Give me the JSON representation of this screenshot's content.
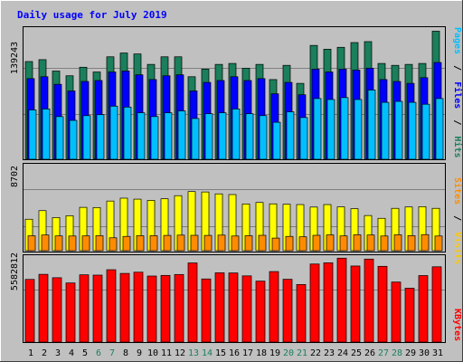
{
  "colors": {
    "background": "#c0c0c0",
    "hits": "#1a7f5a",
    "files": "#0000ff",
    "pages": "#00bfff",
    "visits": "#ffff00",
    "sites": "#ff8c00",
    "kbytes": "#ff0000",
    "title": "#0000ff",
    "weekend": "#1a7f5a"
  },
  "chart_data": [
    {
      "type": "bar",
      "title": "Daily usage for July 2019",
      "categories": [
        "1",
        "2",
        "3",
        "4",
        "5",
        "6",
        "7",
        "8",
        "9",
        "10",
        "11",
        "12",
        "13",
        "14",
        "15",
        "16",
        "17",
        "18",
        "19",
        "20",
        "21",
        "22",
        "23",
        "24",
        "25",
        "26",
        "27",
        "28",
        "29",
        "30",
        "31"
      ],
      "weekend_days": [
        "6",
        "7",
        "13",
        "14",
        "20",
        "21",
        "27",
        "28"
      ],
      "ylabel_max": "139243",
      "legend": [
        "Pages",
        "/",
        "Files",
        "/",
        "Hits"
      ],
      "ylim": [
        0,
        139243
      ],
      "series": [
        {
          "name": "Hits",
          "values": [
            103000,
            105000,
            93000,
            88000,
            97000,
            92000,
            108000,
            112000,
            111000,
            100000,
            108000,
            108000,
            87000,
            95000,
            100000,
            101000,
            96000,
            100000,
            84000,
            99000,
            80000,
            120000,
            116000,
            118000,
            123000,
            124000,
            101000,
            99000,
            100000,
            101000,
            135000
          ]
        },
        {
          "name": "Files",
          "values": [
            85000,
            87000,
            79000,
            72000,
            82000,
            83000,
            92000,
            93000,
            89000,
            84000,
            88000,
            89000,
            72000,
            81000,
            83000,
            87000,
            83000,
            85000,
            69000,
            81000,
            68000,
            95000,
            92000,
            95000,
            94000,
            96000,
            84000,
            82000,
            80000,
            86000,
            102000
          ]
        },
        {
          "name": "Pages",
          "values": [
            52000,
            53000,
            45000,
            41000,
            46000,
            47000,
            56000,
            55000,
            49000,
            45000,
            49000,
            51000,
            43000,
            48000,
            49000,
            53000,
            48000,
            46000,
            39000,
            50000,
            44000,
            64000,
            63000,
            65000,
            63000,
            73000,
            60000,
            61000,
            60000,
            58000,
            64000
          ]
        }
      ]
    },
    {
      "type": "bar",
      "categories": [
        "1",
        "2",
        "3",
        "4",
        "5",
        "6",
        "7",
        "8",
        "9",
        "10",
        "11",
        "12",
        "13",
        "14",
        "15",
        "16",
        "17",
        "18",
        "19",
        "20",
        "21",
        "22",
        "23",
        "24",
        "25",
        "26",
        "27",
        "28",
        "29",
        "30",
        "31"
      ],
      "ylabel_max": "8702",
      "legend": [
        "Sites",
        "/",
        "Visits"
      ],
      "ylim": [
        0,
        8702
      ],
      "series": [
        {
          "name": "Visits",
          "values": [
            3150,
            4010,
            3320,
            3500,
            4340,
            4320,
            4970,
            5260,
            5160,
            5040,
            5200,
            5510,
            5920,
            5880,
            5690,
            5620,
            4680,
            4830,
            4690,
            4650,
            4620,
            4370,
            4620,
            4390,
            4210,
            3520,
            3240,
            4240,
            4380,
            4410,
            4240
          ]
        },
        {
          "name": "Sites",
          "values": [
            1490,
            1570,
            1480,
            1470,
            1480,
            1500,
            1290,
            1430,
            1500,
            1500,
            1530,
            1560,
            1540,
            1530,
            1560,
            1470,
            1500,
            1540,
            1260,
            1430,
            1390,
            1540,
            1580,
            1480,
            1590,
            1570,
            1470,
            1590,
            1510,
            1610,
            1470
          ]
        }
      ]
    },
    {
      "type": "bar",
      "categories": [
        "1",
        "2",
        "3",
        "4",
        "5",
        "6",
        "7",
        "8",
        "9",
        "10",
        "11",
        "12",
        "13",
        "14",
        "15",
        "16",
        "17",
        "18",
        "19",
        "20",
        "21",
        "22",
        "23",
        "24",
        "25",
        "26",
        "27",
        "28",
        "29",
        "30",
        "31"
      ],
      "ylabel_max": "5582812",
      "legend": [
        "KBytes"
      ],
      "ylim": [
        0,
        5582812
      ],
      "series": [
        {
          "name": "KBytes",
          "values": [
            4070000,
            4400000,
            4180000,
            3840000,
            4370000,
            4350000,
            4700000,
            4460000,
            4540000,
            4290000,
            4330000,
            4390000,
            5140000,
            4100000,
            4500000,
            4490000,
            4300000,
            3960000,
            4580000,
            4080000,
            3740000,
            5070000,
            5150000,
            5450000,
            4940000,
            5390000,
            4920000,
            3900000,
            3500000,
            4320000,
            4890000
          ]
        }
      ]
    }
  ]
}
